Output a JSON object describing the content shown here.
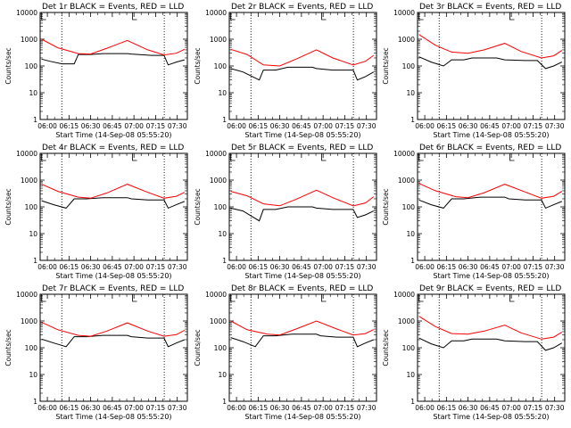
{
  "chart_data": [
    {
      "type": "line",
      "title": "Det 1r BLACK = Events, RED = LLD",
      "xlabel": "Start Time (14-Sep-08 05:55:20)",
      "ylabel": "Counts/sec",
      "x_ticks": [
        "06:00",
        "06:15",
        "06:30",
        "06:45",
        "07:00",
        "07:15",
        "07:30"
      ],
      "y_ticks": [
        "1",
        "10",
        "100",
        "1000",
        "10000"
      ],
      "y_scale": "log",
      "ylim": [
        1,
        10000
      ],
      "xlim_minutes": [
        -5,
        35
      ],
      "vlines_minutes": [
        12,
        36
      ],
      "series": [
        {
          "color": "#000000",
          "x": [
            0,
            2,
            5,
            8,
            9,
            12,
            15,
            21,
            22,
            27,
            30,
            31,
            33,
            35
          ],
          "values": [
            180,
            150,
            120,
            120,
            270,
            270,
            290,
            290,
            280,
            250,
            250,
            110,
            140,
            170
          ]
        },
        {
          "color": "#ff0000",
          "x": [
            0,
            4,
            9,
            12,
            16,
            21,
            26,
            30,
            33,
            35
          ],
          "values": [
            1000,
            480,
            290,
            280,
            460,
            900,
            400,
            260,
            300,
            420
          ]
        }
      ]
    },
    {
      "type": "line",
      "title": "Det 2r BLACK = Events, RED = LLD",
      "xlabel": "Start Time (14-Sep-08 05:55:20)",
      "ylabel": "Counts/sec",
      "x_ticks": [
        "06:00",
        "06:15",
        "06:30",
        "06:45",
        "07:00",
        "07:15",
        "07:30"
      ],
      "y_ticks": [
        "1",
        "10",
        "100",
        "1000",
        "10000"
      ],
      "y_scale": "log",
      "ylim": [
        1,
        10000
      ],
      "xlim_minutes": [
        -5,
        35
      ],
      "vlines_minutes": [
        12,
        36
      ],
      "series": [
        {
          "color": "#000000",
          "x": [
            0,
            3,
            7,
            8,
            11,
            14,
            20,
            21,
            25,
            30,
            31,
            33,
            35
          ],
          "values": [
            80,
            60,
            30,
            70,
            70,
            90,
            90,
            80,
            70,
            70,
            30,
            40,
            60
          ]
        },
        {
          "color": "#ff0000",
          "x": [
            0,
            4,
            8,
            12,
            16,
            21,
            25,
            30,
            33,
            35
          ],
          "values": [
            420,
            270,
            110,
            100,
            180,
            400,
            200,
            110,
            150,
            250
          ]
        }
      ]
    },
    {
      "type": "line",
      "title": "Det 3r BLACK = Events, RED = LLD",
      "xlabel": "Start Time (14-Sep-08 05:55:20)",
      "ylabel": "Counts/sec",
      "x_ticks": [
        "06:00",
        "06:15",
        "06:30",
        "06:45",
        "07:00",
        "07:15",
        "07:30"
      ],
      "y_ticks": [
        "1",
        "10",
        "100",
        "1000",
        "10000"
      ],
      "y_scale": "log",
      "ylim": [
        1,
        10000
      ],
      "xlim_minutes": [
        -5,
        35
      ],
      "vlines_minutes": [
        12,
        36
      ],
      "series": [
        {
          "color": "#000000",
          "x": [
            0,
            3,
            6,
            8,
            11,
            13,
            19,
            21,
            26,
            29,
            31,
            33,
            35
          ],
          "values": [
            220,
            140,
            100,
            170,
            170,
            200,
            200,
            170,
            160,
            160,
            80,
            100,
            140
          ]
        },
        {
          "color": "#ff0000",
          "x": [
            0,
            4,
            8,
            12,
            16,
            21,
            25,
            30,
            33,
            35
          ],
          "values": [
            1500,
            600,
            330,
            300,
            400,
            700,
            350,
            200,
            240,
            380
          ]
        }
      ]
    },
    {
      "type": "line",
      "title": "Det 4r BLACK = Events, RED = LLD",
      "xlabel": "Start Time (14-Sep-08 05:55:20)",
      "ylabel": "Counts/sec",
      "x_ticks": [
        "06:00",
        "06:15",
        "06:30",
        "06:45",
        "07:00",
        "07:15",
        "07:30"
      ],
      "y_ticks": [
        "1",
        "10",
        "100",
        "1000",
        "10000"
      ],
      "y_scale": "log",
      "ylim": [
        1,
        10000
      ],
      "xlim_minutes": [
        -5,
        35
      ],
      "vlines_minutes": [
        12,
        36
      ],
      "series": [
        {
          "color": "#000000",
          "x": [
            0,
            3,
            6,
            8,
            11,
            15,
            21,
            22,
            26,
            30,
            31,
            33,
            35
          ],
          "values": [
            170,
            120,
            90,
            200,
            200,
            220,
            220,
            200,
            180,
            180,
            90,
            120,
            160
          ]
        },
        {
          "color": "#ff0000",
          "x": [
            0,
            4,
            9,
            12,
            16,
            21,
            26,
            30,
            33,
            35
          ],
          "values": [
            700,
            380,
            230,
            210,
            330,
            700,
            350,
            210,
            250,
            350
          ]
        }
      ]
    },
    {
      "type": "line",
      "title": "Det 5r BLACK = Events, RED = LLD",
      "xlabel": "Start Time (14-Sep-08 05:55:20)",
      "ylabel": "Counts/sec",
      "x_ticks": [
        "06:00",
        "06:15",
        "06:30",
        "06:45",
        "07:00",
        "07:15",
        "07:30"
      ],
      "y_ticks": [
        "1",
        "10",
        "100",
        "1000",
        "10000"
      ],
      "y_scale": "log",
      "ylim": [
        1,
        10000
      ],
      "xlim_minutes": [
        -5,
        35
      ],
      "vlines_minutes": [
        12,
        36
      ],
      "series": [
        {
          "color": "#000000",
          "x": [
            0,
            3,
            7,
            8,
            11,
            14,
            20,
            21,
            25,
            30,
            31,
            33,
            35
          ],
          "values": [
            90,
            70,
            30,
            80,
            80,
            100,
            100,
            90,
            80,
            80,
            40,
            50,
            70
          ]
        },
        {
          "color": "#ff0000",
          "x": [
            0,
            4,
            8,
            12,
            16,
            21,
            25,
            30,
            33,
            35
          ],
          "values": [
            380,
            260,
            130,
            110,
            190,
            420,
            220,
            110,
            140,
            240
          ]
        }
      ]
    },
    {
      "type": "line",
      "title": "Det 6r BLACK = Events, RED = LLD",
      "xlabel": "Start Time (14-Sep-08 05:55:20)",
      "ylabel": "Counts/sec",
      "x_ticks": [
        "06:00",
        "06:15",
        "06:30",
        "06:45",
        "07:00",
        "07:15",
        "07:30"
      ],
      "y_ticks": [
        "1",
        "10",
        "100",
        "1000",
        "10000"
      ],
      "y_scale": "log",
      "ylim": [
        1,
        10000
      ],
      "xlim_minutes": [
        -5,
        35
      ],
      "vlines_minutes": [
        12,
        36
      ],
      "series": [
        {
          "color": "#000000",
          "x": [
            0,
            3,
            6,
            8,
            11,
            15,
            21,
            22,
            26,
            30,
            31,
            33,
            35
          ],
          "values": [
            180,
            120,
            90,
            200,
            200,
            230,
            230,
            200,
            180,
            180,
            90,
            120,
            160
          ]
        },
        {
          "color": "#ff0000",
          "x": [
            0,
            4,
            9,
            12,
            16,
            21,
            26,
            30,
            33,
            35
          ],
          "values": [
            750,
            400,
            240,
            220,
            340,
            700,
            360,
            210,
            250,
            380
          ]
        }
      ]
    },
    {
      "type": "line",
      "title": "Det 7r BLACK = Events, RED = LLD",
      "xlabel": "Start Time (14-Sep-08 05:55:20)",
      "ylabel": "Counts/sec",
      "x_ticks": [
        "06:00",
        "06:15",
        "06:30",
        "06:45",
        "07:00",
        "07:15",
        "07:30"
      ],
      "y_ticks": [
        "1",
        "10",
        "100",
        "1000",
        "10000"
      ],
      "y_scale": "log",
      "ylim": [
        1,
        10000
      ],
      "xlim_minutes": [
        -5,
        35
      ],
      "vlines_minutes": [
        12,
        36
      ],
      "series": [
        {
          "color": "#000000",
          "x": [
            0,
            3,
            6,
            8,
            11,
            15,
            21,
            22,
            26,
            30,
            31,
            33,
            35
          ],
          "values": [
            210,
            150,
            110,
            260,
            260,
            290,
            290,
            260,
            230,
            230,
            110,
            150,
            200
          ]
        },
        {
          "color": "#ff0000",
          "x": [
            0,
            4,
            9,
            12,
            16,
            21,
            26,
            30,
            33,
            35
          ],
          "values": [
            900,
            470,
            290,
            270,
            420,
            850,
            420,
            270,
            310,
            450
          ]
        }
      ]
    },
    {
      "type": "line",
      "title": "Det 8r BLACK = Events, RED = LLD",
      "xlabel": "Start Time (14-Sep-08 05:55:20)",
      "ylabel": "Counts/sec",
      "x_ticks": [
        "06:00",
        "06:15",
        "06:30",
        "06:45",
        "07:00",
        "07:15",
        "07:30"
      ],
      "y_ticks": [
        "1",
        "10",
        "100",
        "1000",
        "10000"
      ],
      "y_scale": "log",
      "ylim": [
        1,
        10000
      ],
      "xlim_minutes": [
        -5,
        35
      ],
      "vlines_minutes": [
        12,
        36
      ],
      "series": [
        {
          "color": "#000000",
          "x": [
            0,
            3,
            6,
            8,
            11,
            15,
            21,
            22,
            26,
            30,
            31,
            33,
            35
          ],
          "values": [
            240,
            170,
            110,
            280,
            280,
            320,
            320,
            280,
            250,
            250,
            110,
            150,
            200
          ]
        },
        {
          "color": "#ff0000",
          "x": [
            0,
            4,
            9,
            12,
            16,
            21,
            26,
            30,
            33,
            35
          ],
          "values": [
            1000,
            470,
            320,
            300,
            500,
            1000,
            500,
            300,
            340,
            480
          ]
        }
      ]
    },
    {
      "type": "line",
      "title": "Det 9r BLACK = Events, RED = LLD",
      "xlabel": "Start Time (14-Sep-08 05:55:20)",
      "ylabel": "Counts/sec",
      "x_ticks": [
        "06:00",
        "06:15",
        "06:30",
        "06:45",
        "07:00",
        "07:15",
        "07:30"
      ],
      "y_ticks": [
        "1",
        "10",
        "100",
        "1000",
        "10000"
      ],
      "y_scale": "log",
      "ylim": [
        1,
        10000
      ],
      "xlim_minutes": [
        -5,
        35
      ],
      "vlines_minutes": [
        12,
        36
      ],
      "series": [
        {
          "color": "#000000",
          "x": [
            0,
            3,
            6,
            8,
            11,
            13,
            19,
            21,
            26,
            29,
            31,
            33,
            35
          ],
          "values": [
            230,
            140,
            100,
            180,
            180,
            210,
            210,
            180,
            170,
            170,
            80,
            100,
            150
          ]
        },
        {
          "color": "#ff0000",
          "x": [
            0,
            4,
            8,
            12,
            16,
            21,
            25,
            30,
            33,
            35
          ],
          "values": [
            1500,
            620,
            340,
            320,
            420,
            700,
            360,
            210,
            250,
            380
          ]
        }
      ]
    }
  ]
}
